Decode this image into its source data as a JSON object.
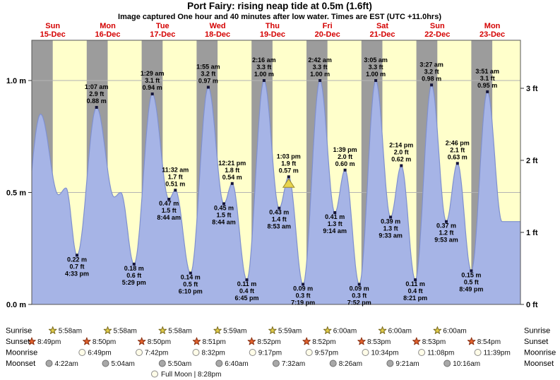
{
  "title": "Port Fairy: rising  neap tide at 0.5m (1.6ft)",
  "subtitle": "Image captured One hour and 40 minutes after low water. Times are EST (UTC +11.0hrs)",
  "footer": "Full Moon | 8:28pm",
  "chart_data": {
    "type": "area",
    "title": "Port Fairy: rising  neap tide at 0.5m (1.6ft)",
    "ylim_m": [
      0,
      1.18
    ],
    "grid": true,
    "y_axis_left": {
      "unit": "m",
      "ticks": [
        {
          "label": "1.0 m",
          "m": 1.0
        },
        {
          "label": "0.5 m",
          "m": 0.5
        },
        {
          "label": "0.0 m",
          "m": 0.0
        }
      ]
    },
    "y_axis_right": {
      "unit": "ft",
      "ticks": [
        {
          "label": "3 ft",
          "ft": 3
        },
        {
          "label": "2 ft",
          "ft": 2
        },
        {
          "label": "1 ft",
          "ft": 1
        },
        {
          "label": "0 ft",
          "ft": 0
        }
      ]
    },
    "days": [
      {
        "name": "Sun",
        "date": "15-Dec"
      },
      {
        "name": "Mon",
        "date": "16-Dec"
      },
      {
        "name": "Tue",
        "date": "17-Dec"
      },
      {
        "name": "Wed",
        "date": "18-Dec"
      },
      {
        "name": "Thu",
        "date": "19-Dec"
      },
      {
        "name": "Fri",
        "date": "20-Dec"
      },
      {
        "name": "Sat",
        "date": "21-Dec"
      },
      {
        "name": "Sun",
        "date": "22-Dec"
      },
      {
        "name": "Mon",
        "date": "23-Dec"
      }
    ],
    "tides": [
      {
        "day": -1,
        "time": "4:10 pm",
        "m": 0.26,
        "type": "low",
        "labeled": false
      },
      {
        "day": 0,
        "time": "12:40 am",
        "m": 0.85,
        "type": "high",
        "labeled": false
      },
      {
        "day": 0,
        "time": "8:30 am",
        "m": 0.49,
        "type": "low",
        "labeled": false
      },
      {
        "day": 0,
        "time": "11:45 am",
        "m": 0.52,
        "type": "high",
        "labeled": false
      },
      {
        "day": 0,
        "time": "4:33 pm",
        "m": 0.22,
        "ft": "0.7 ft",
        "type": "low",
        "labeled": true
      },
      {
        "day": 1,
        "time": "1:07 am",
        "m": 0.88,
        "ft": "2.9 ft",
        "type": "high",
        "labeled": true
      },
      {
        "day": 1,
        "time": "8:50 am",
        "m": 0.48,
        "type": "low",
        "labeled": false
      },
      {
        "day": 1,
        "time": "11:40 am",
        "m": 0.5,
        "type": "high",
        "labeled": false
      },
      {
        "day": 1,
        "time": "5:29 pm",
        "m": 0.18,
        "ft": "0.6 ft",
        "type": "low",
        "labeled": true
      },
      {
        "day": 2,
        "time": "1:29 am",
        "m": 0.94,
        "ft": "3.1 ft",
        "type": "high",
        "labeled": true
      },
      {
        "day": 2,
        "time": "8:44 am",
        "m": 0.47,
        "ft": "1.5 ft",
        "type": "low",
        "labeled": true
      },
      {
        "day": 2,
        "time": "11:32 am",
        "m": 0.51,
        "ft": "1.7 ft",
        "type": "high",
        "labeled": true
      },
      {
        "day": 2,
        "time": "6:10 pm",
        "m": 0.14,
        "ft": "0.5 ft",
        "type": "low",
        "labeled": true
      },
      {
        "day": 3,
        "time": "1:55 am",
        "m": 0.97,
        "ft": "3.2 ft",
        "type": "high",
        "labeled": true
      },
      {
        "day": 3,
        "time": "8:44 am",
        "m": 0.45,
        "ft": "1.5 ft",
        "type": "low",
        "labeled": true
      },
      {
        "day": 3,
        "time": "12:21 pm",
        "m": 0.54,
        "ft": "1.8 ft",
        "type": "high",
        "labeled": true
      },
      {
        "day": 3,
        "time": "6:45 pm",
        "m": 0.11,
        "ft": "0.4 ft",
        "type": "low",
        "labeled": true
      },
      {
        "day": 4,
        "time": "2:16 am",
        "m": 1.0,
        "ft": "3.3 ft",
        "type": "high",
        "labeled": true
      },
      {
        "day": 4,
        "time": "8:53 am",
        "m": 0.43,
        "ft": "1.4 ft",
        "type": "low",
        "labeled": true
      },
      {
        "day": 4,
        "time": "1:03 pm",
        "m": 0.57,
        "ft": "1.9 ft",
        "type": "high",
        "labeled": true,
        "current": true
      },
      {
        "day": 4,
        "time": "7:19 pm",
        "m": 0.09,
        "ft": "0.3 ft",
        "type": "low",
        "labeled": true
      },
      {
        "day": 5,
        "time": "2:42 am",
        "m": 1.0,
        "ft": "3.3 ft",
        "type": "high",
        "labeled": true
      },
      {
        "day": 5,
        "time": "9:14 am",
        "m": 0.41,
        "ft": "1.3 ft",
        "type": "low",
        "labeled": true
      },
      {
        "day": 5,
        "time": "1:39 pm",
        "m": 0.6,
        "ft": "2.0 ft",
        "type": "high",
        "labeled": true
      },
      {
        "day": 5,
        "time": "7:52 pm",
        "m": 0.09,
        "ft": "0.3 ft",
        "type": "low",
        "labeled": true
      },
      {
        "day": 6,
        "time": "3:05 am",
        "m": 1.0,
        "ft": "3.3 ft",
        "type": "high",
        "labeled": true
      },
      {
        "day": 6,
        "time": "9:33 am",
        "m": 0.39,
        "ft": "1.3 ft",
        "type": "low",
        "labeled": true
      },
      {
        "day": 6,
        "time": "2:14 pm",
        "m": 0.62,
        "ft": "2.0 ft",
        "type": "high",
        "labeled": true
      },
      {
        "day": 6,
        "time": "8:21 pm",
        "m": 0.11,
        "ft": "0.4 ft",
        "type": "low",
        "labeled": true
      },
      {
        "day": 7,
        "time": "3:27 am",
        "m": 0.98,
        "ft": "3.2 ft",
        "type": "high",
        "labeled": true
      },
      {
        "day": 7,
        "time": "9:53 am",
        "m": 0.37,
        "ft": "1.2 ft",
        "type": "low",
        "labeled": true
      },
      {
        "day": 7,
        "time": "2:46 pm",
        "m": 0.63,
        "ft": "2.1 ft",
        "type": "high",
        "labeled": true
      },
      {
        "day": 7,
        "time": "8:49 pm",
        "m": 0.15,
        "ft": "0.5 ft",
        "type": "low",
        "labeled": true
      },
      {
        "day": 8,
        "time": "3:51 am",
        "m": 0.95,
        "ft": "3.1 ft",
        "type": "high",
        "labeled": true
      },
      {
        "day": 8,
        "time": "10:15 am",
        "m": 0.37,
        "type": "low",
        "labeled": false
      }
    ],
    "colors": {
      "plot_bg": "#ffffcb",
      "night_band": "#9c9c9c",
      "tide_fill": "#a6b4e6",
      "tide_stroke": "#7f90cf",
      "day_label": "#d40000",
      "grid_line": "#b3b3b3",
      "plot_border": "#555555",
      "marker_dot": "#15153a",
      "current_marker_fill": "#e8d44c",
      "current_marker_stroke": "#9c8a2a"
    }
  },
  "astro": {
    "rows": [
      {
        "name": "sunrise",
        "label": "Sunrise",
        "icon": "star",
        "icon_fill": "#e3cf4b",
        "icon_stroke": "#7a6a1e",
        "events": [
          {
            "day": 0,
            "time": "5:58am"
          },
          {
            "day": 1,
            "time": "5:58am"
          },
          {
            "day": 2,
            "time": "5:58am"
          },
          {
            "day": 3,
            "time": "5:59am"
          },
          {
            "day": 4,
            "time": "5:59am"
          },
          {
            "day": 5,
            "time": "6:00am"
          },
          {
            "day": 6,
            "time": "6:00am"
          },
          {
            "day": 7,
            "time": "6:00am"
          }
        ]
      },
      {
        "name": "sunset",
        "label": "Sunset",
        "icon": "star",
        "icon_fill": "#e4632e",
        "icon_stroke": "#8a2f10",
        "events": [
          {
            "day": -1,
            "time": "8:49pm"
          },
          {
            "day": 0,
            "time": "8:50pm"
          },
          {
            "day": 1,
            "time": "8:50pm"
          },
          {
            "day": 2,
            "time": "8:51pm"
          },
          {
            "day": 3,
            "time": "8:52pm"
          },
          {
            "day": 4,
            "time": "8:52pm"
          },
          {
            "day": 5,
            "time": "8:53pm"
          },
          {
            "day": 6,
            "time": "8:53pm"
          },
          {
            "day": 7,
            "time": "8:54pm"
          }
        ]
      },
      {
        "name": "moonrise",
        "label": "Moonrise",
        "icon": "moon",
        "icon_fill": "#fffce8",
        "icon_stroke": "#8a8a8a",
        "events": [
          {
            "day": 0,
            "time": "6:49pm"
          },
          {
            "day": 1,
            "time": "7:42pm"
          },
          {
            "day": 2,
            "time": "8:32pm"
          },
          {
            "day": 3,
            "time": "9:17pm"
          },
          {
            "day": 4,
            "time": "9:57pm"
          },
          {
            "day": 5,
            "time": "10:34pm"
          },
          {
            "day": 6,
            "time": "11:08pm"
          },
          {
            "day": 7,
            "time": "11:39pm"
          }
        ]
      },
      {
        "name": "moonset",
        "label": "Moonset",
        "icon": "moon",
        "icon_fill": "#a8a8a8",
        "icon_stroke": "#6e6e6e",
        "events": [
          {
            "day": 0,
            "time": "4:22am"
          },
          {
            "day": 1,
            "time": "5:04am"
          },
          {
            "day": 2,
            "time": "5:50am"
          },
          {
            "day": 3,
            "time": "6:40am"
          },
          {
            "day": 4,
            "time": "7:32am"
          },
          {
            "day": 5,
            "time": "8:26am"
          },
          {
            "day": 6,
            "time": "9:21am"
          },
          {
            "day": 7,
            "time": "10:16am"
          }
        ]
      }
    ]
  }
}
